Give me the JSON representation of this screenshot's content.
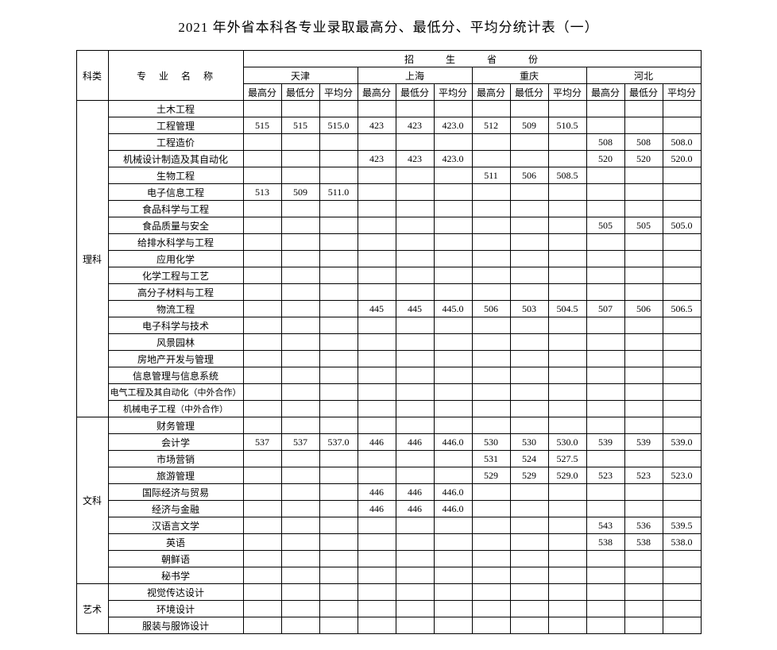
{
  "title": "2021 年外省本科各专业录取最高分、最低分、平均分统计表（一）",
  "header": {
    "category": "科类",
    "major": "专业名称",
    "provinces_group": "招生省份",
    "provinces": [
      "天津",
      "上海",
      "重庆",
      "河北"
    ],
    "subcols": [
      "最高分",
      "最低分",
      "平均分"
    ]
  },
  "categories": [
    {
      "name": "理科",
      "majors": [
        {
          "name": "土木工程",
          "scores": [
            [
              "",
              "",
              ""
            ],
            [
              "",
              "",
              ""
            ],
            [
              "",
              "",
              ""
            ],
            [
              "",
              "",
              ""
            ]
          ]
        },
        {
          "name": "工程管理",
          "scores": [
            [
              "515",
              "515",
              "515.0"
            ],
            [
              "423",
              "423",
              "423.0"
            ],
            [
              "512",
              "509",
              "510.5"
            ],
            [
              "",
              "",
              ""
            ]
          ]
        },
        {
          "name": "工程造价",
          "scores": [
            [
              "",
              "",
              ""
            ],
            [
              "",
              "",
              ""
            ],
            [
              "",
              "",
              ""
            ],
            [
              "508",
              "508",
              "508.0"
            ]
          ]
        },
        {
          "name": "机械设计制造及其自动化",
          "scores": [
            [
              "",
              "",
              ""
            ],
            [
              "423",
              "423",
              "423.0"
            ],
            [
              "",
              "",
              ""
            ],
            [
              "520",
              "520",
              "520.0"
            ]
          ]
        },
        {
          "name": "生物工程",
          "scores": [
            [
              "",
              "",
              ""
            ],
            [
              "",
              "",
              ""
            ],
            [
              "511",
              "506",
              "508.5"
            ],
            [
              "",
              "",
              ""
            ]
          ]
        },
        {
          "name": "电子信息工程",
          "scores": [
            [
              "513",
              "509",
              "511.0"
            ],
            [
              "",
              "",
              ""
            ],
            [
              "",
              "",
              ""
            ],
            [
              "",
              "",
              ""
            ]
          ]
        },
        {
          "name": "食品科学与工程",
          "scores": [
            [
              "",
              "",
              ""
            ],
            [
              "",
              "",
              ""
            ],
            [
              "",
              "",
              ""
            ],
            [
              "",
              "",
              ""
            ]
          ]
        },
        {
          "name": "食品质量与安全",
          "scores": [
            [
              "",
              "",
              ""
            ],
            [
              "",
              "",
              ""
            ],
            [
              "",
              "",
              ""
            ],
            [
              "505",
              "505",
              "505.0"
            ]
          ]
        },
        {
          "name": "给排水科学与工程",
          "scores": [
            [
              "",
              "",
              ""
            ],
            [
              "",
              "",
              ""
            ],
            [
              "",
              "",
              ""
            ],
            [
              "",
              "",
              ""
            ]
          ]
        },
        {
          "name": "应用化学",
          "scores": [
            [
              "",
              "",
              ""
            ],
            [
              "",
              "",
              ""
            ],
            [
              "",
              "",
              ""
            ],
            [
              "",
              "",
              ""
            ]
          ]
        },
        {
          "name": "化学工程与工艺",
          "scores": [
            [
              "",
              "",
              ""
            ],
            [
              "",
              "",
              ""
            ],
            [
              "",
              "",
              ""
            ],
            [
              "",
              "",
              ""
            ]
          ]
        },
        {
          "name": "高分子材料与工程",
          "scores": [
            [
              "",
              "",
              ""
            ],
            [
              "",
              "",
              ""
            ],
            [
              "",
              "",
              ""
            ],
            [
              "",
              "",
              ""
            ]
          ]
        },
        {
          "name": "物流工程",
          "scores": [
            [
              "",
              "",
              ""
            ],
            [
              "445",
              "445",
              "445.0"
            ],
            [
              "506",
              "503",
              "504.5"
            ],
            [
              "507",
              "506",
              "506.5"
            ]
          ]
        },
        {
          "name": "电子科学与技术",
          "scores": [
            [
              "",
              "",
              ""
            ],
            [
              "",
              "",
              ""
            ],
            [
              "",
              "",
              ""
            ],
            [
              "",
              "",
              ""
            ]
          ]
        },
        {
          "name": "风景园林",
          "scores": [
            [
              "",
              "",
              ""
            ],
            [
              "",
              "",
              ""
            ],
            [
              "",
              "",
              ""
            ],
            [
              "",
              "",
              ""
            ]
          ]
        },
        {
          "name": "房地产开发与管理",
          "scores": [
            [
              "",
              "",
              ""
            ],
            [
              "",
              "",
              ""
            ],
            [
              "",
              "",
              ""
            ],
            [
              "",
              "",
              ""
            ]
          ]
        },
        {
          "name": "信息管理与信息系统",
          "scores": [
            [
              "",
              "",
              ""
            ],
            [
              "",
              "",
              ""
            ],
            [
              "",
              "",
              ""
            ],
            [
              "",
              "",
              ""
            ]
          ]
        },
        {
          "name": "电气工程及其自动化（中外合作）",
          "small": true,
          "scores": [
            [
              "",
              "",
              ""
            ],
            [
              "",
              "",
              ""
            ],
            [
              "",
              "",
              ""
            ],
            [
              "",
              "",
              ""
            ]
          ]
        },
        {
          "name": "机械电子工程（中外合作）",
          "small": true,
          "scores": [
            [
              "",
              "",
              ""
            ],
            [
              "",
              "",
              ""
            ],
            [
              "",
              "",
              ""
            ],
            [
              "",
              "",
              ""
            ]
          ]
        }
      ]
    },
    {
      "name": "文科",
      "majors": [
        {
          "name": "财务管理",
          "scores": [
            [
              "",
              "",
              ""
            ],
            [
              "",
              "",
              ""
            ],
            [
              "",
              "",
              ""
            ],
            [
              "",
              "",
              ""
            ]
          ]
        },
        {
          "name": "会计学",
          "scores": [
            [
              "537",
              "537",
              "537.0"
            ],
            [
              "446",
              "446",
              "446.0"
            ],
            [
              "530",
              "530",
              "530.0"
            ],
            [
              "539",
              "539",
              "539.0"
            ]
          ]
        },
        {
          "name": "市场营销",
          "scores": [
            [
              "",
              "",
              ""
            ],
            [
              "",
              "",
              ""
            ],
            [
              "531",
              "524",
              "527.5"
            ],
            [
              "",
              "",
              ""
            ]
          ]
        },
        {
          "name": "旅游管理",
          "scores": [
            [
              "",
              "",
              ""
            ],
            [
              "",
              "",
              ""
            ],
            [
              "529",
              "529",
              "529.0"
            ],
            [
              "523",
              "523",
              "523.0"
            ]
          ]
        },
        {
          "name": "国际经济与贸易",
          "scores": [
            [
              "",
              "",
              ""
            ],
            [
              "446",
              "446",
              "446.0"
            ],
            [
              "",
              "",
              ""
            ],
            [
              "",
              "",
              ""
            ]
          ]
        },
        {
          "name": "经济与金融",
          "scores": [
            [
              "",
              "",
              ""
            ],
            [
              "446",
              "446",
              "446.0"
            ],
            [
              "",
              "",
              ""
            ],
            [
              "",
              "",
              ""
            ]
          ]
        },
        {
          "name": "汉语言文学",
          "scores": [
            [
              "",
              "",
              ""
            ],
            [
              "",
              "",
              ""
            ],
            [
              "",
              "",
              ""
            ],
            [
              "543",
              "536",
              "539.5"
            ]
          ]
        },
        {
          "name": "英语",
          "scores": [
            [
              "",
              "",
              ""
            ],
            [
              "",
              "",
              ""
            ],
            [
              "",
              "",
              ""
            ],
            [
              "538",
              "538",
              "538.0"
            ]
          ]
        },
        {
          "name": "朝鲜语",
          "scores": [
            [
              "",
              "",
              ""
            ],
            [
              "",
              "",
              ""
            ],
            [
              "",
              "",
              ""
            ],
            [
              "",
              "",
              ""
            ]
          ]
        },
        {
          "name": "秘书学",
          "scores": [
            [
              "",
              "",
              ""
            ],
            [
              "",
              "",
              ""
            ],
            [
              "",
              "",
              ""
            ],
            [
              "",
              "",
              ""
            ]
          ]
        }
      ]
    },
    {
      "name": "艺术",
      "majors": [
        {
          "name": "视觉传达设计",
          "scores": [
            [
              "",
              "",
              ""
            ],
            [
              "",
              "",
              ""
            ],
            [
              "",
              "",
              ""
            ],
            [
              "",
              "",
              ""
            ]
          ]
        },
        {
          "name": "环境设计",
          "scores": [
            [
              "",
              "",
              ""
            ],
            [
              "",
              "",
              ""
            ],
            [
              "",
              "",
              ""
            ],
            [
              "",
              "",
              ""
            ]
          ]
        },
        {
          "name": "服装与服饰设计",
          "scores": [
            [
              "",
              "",
              ""
            ],
            [
              "",
              "",
              ""
            ],
            [
              "",
              "",
              ""
            ],
            [
              "",
              "",
              ""
            ]
          ]
        }
      ]
    }
  ]
}
